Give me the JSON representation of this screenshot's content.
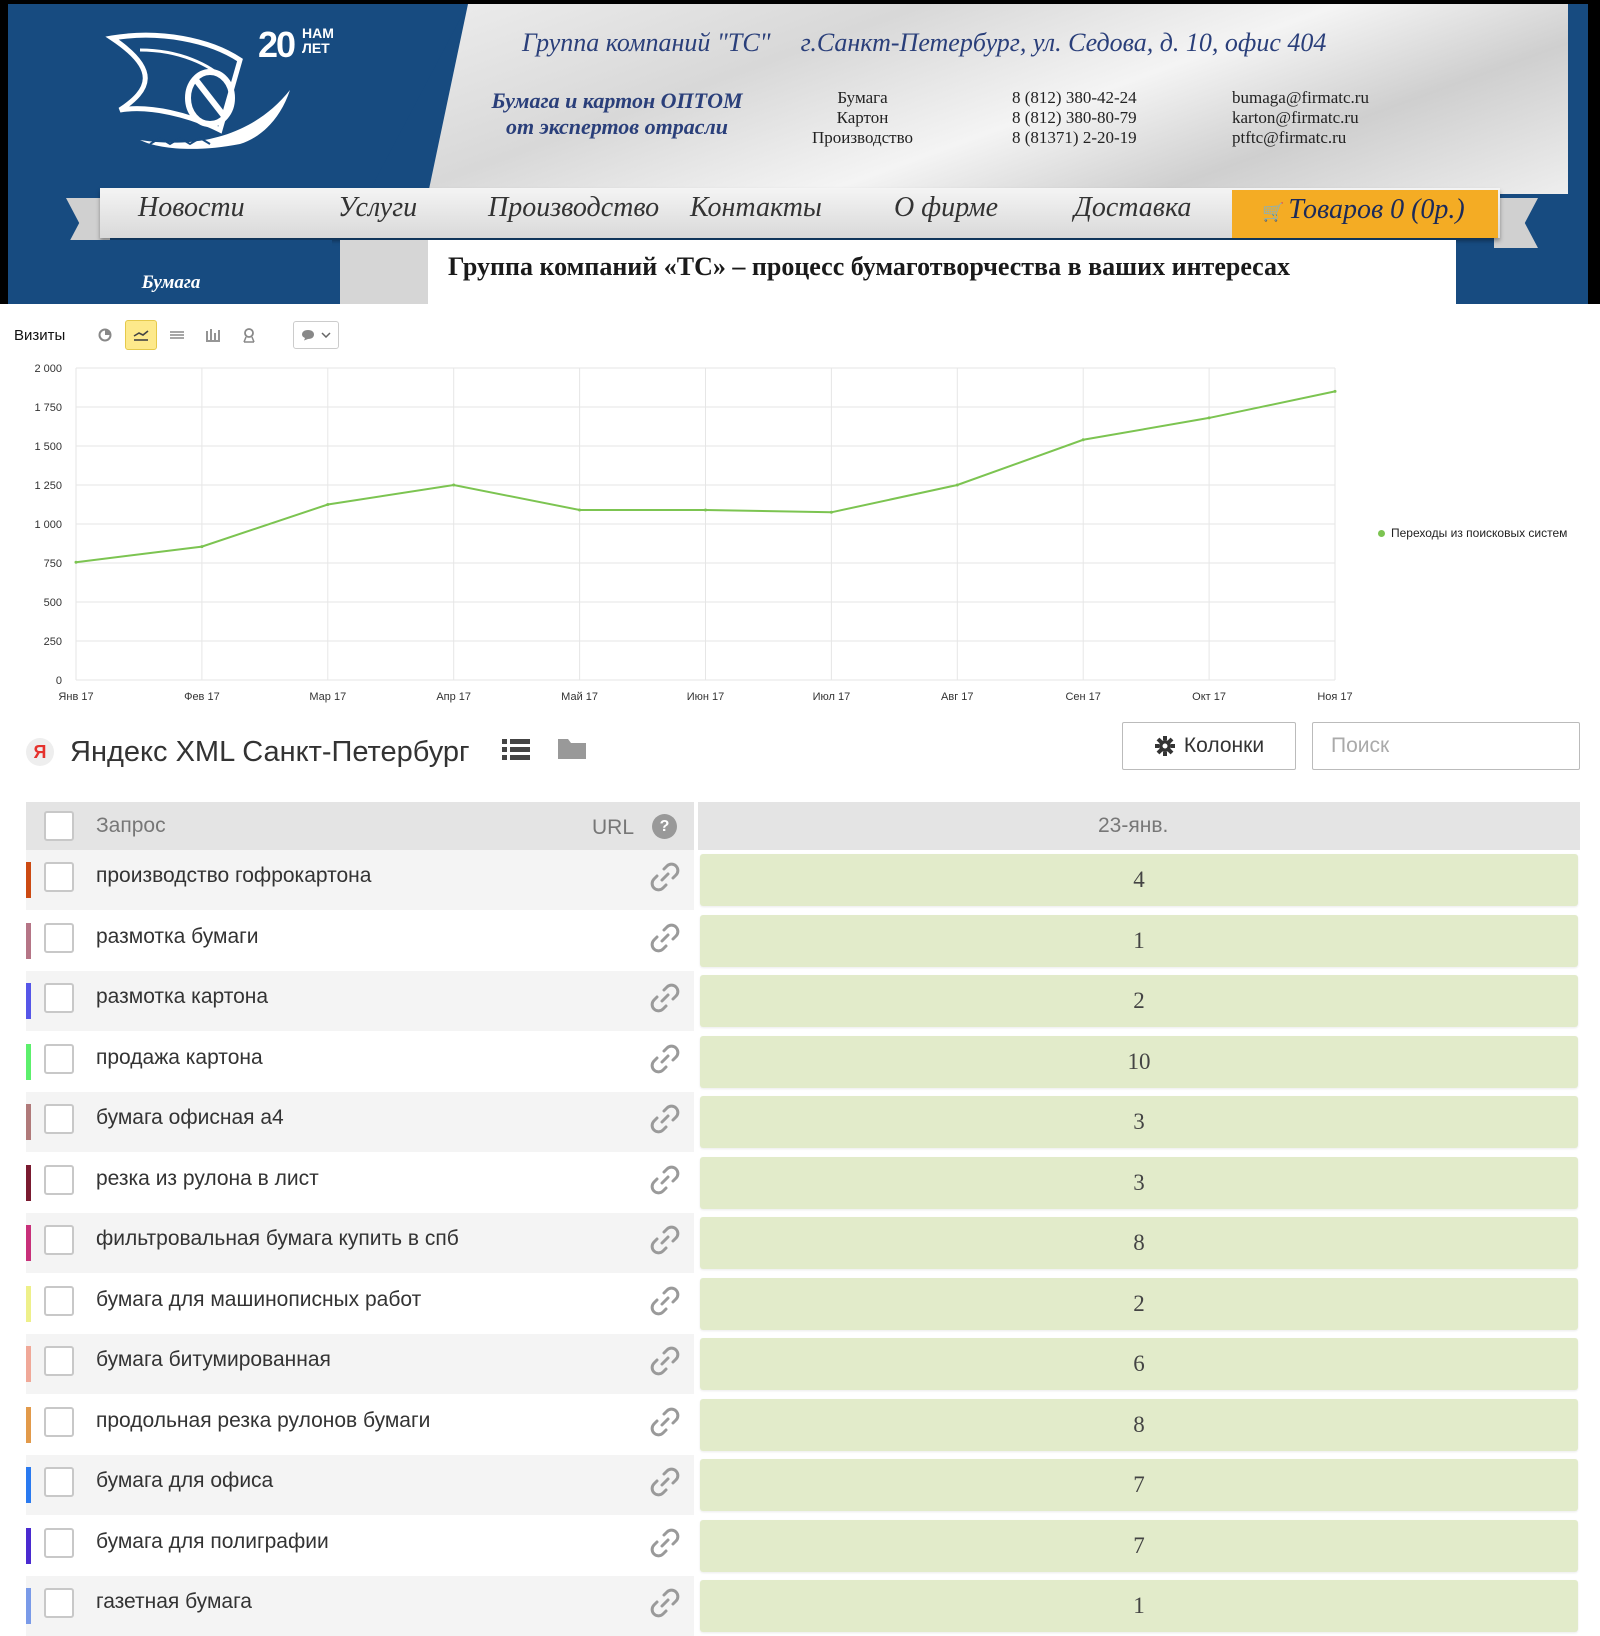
{
  "site_header": {
    "logo_years_number": "20",
    "logo_years_text": "НАМ ЛЕТ",
    "company": "Группа компаний \"ТС\"",
    "address": "г.Санкт-Петербург, ул. Седова, д. 10, офис 404",
    "slogan_line1": "Бумага и картон ОПТОМ",
    "slogan_line2": "от экспертов отрасли",
    "contacts": [
      {
        "label": "Бумага",
        "phone": "8 (812) 380-42-24",
        "email": "bumaga@firmatc.ru"
      },
      {
        "label": "Картон",
        "phone": "8 (812) 380-80-79",
        "email": "karton@firmatc.ru"
      },
      {
        "label": "Производство",
        "phone": "8 (81371) 2-20-19",
        "email": "ptftc@firmatc.ru"
      }
    ],
    "menu": [
      "Новости",
      "Услуги",
      "Производство",
      "Контакты",
      "О фирме",
      "Доставка"
    ],
    "cart_label": "Товаров 0 (0р.)",
    "side_tab": "Бумага",
    "heading": "Группа компаний «ТС»  – процесс бумаготворчества в ваших интересах"
  },
  "chart_toolbar": {
    "metric": "Визиты",
    "chart_type_icons": [
      "pie-chart-icon",
      "line-chart-icon",
      "area-chart-icon",
      "bar-chart-icon",
      "map-icon"
    ],
    "active_type": "line-chart-icon",
    "annotation_dropdown_icon": "comment-icon"
  },
  "chart_data": {
    "type": "line",
    "x": [
      "Янв 17",
      "Фев 17",
      "Мар 17",
      "Апр 17",
      "Май 17",
      "Июн 17",
      "Июл 17",
      "Авг 17",
      "Сен 17",
      "Окт 17",
      "Ноя 17"
    ],
    "series": [
      {
        "name": "Переходы из поисковых систем",
        "color": "#7cc451",
        "values": [
          755,
          855,
          1125,
          1250,
          1090,
          1090,
          1075,
          1250,
          1540,
          1680,
          1850
        ]
      }
    ],
    "ylim": [
      0,
      2000
    ],
    "yticks": [
      0,
      250,
      500,
      750,
      1000,
      1250,
      1500,
      1750,
      2000
    ],
    "ytick_labels": [
      "0",
      "250",
      "500",
      "750",
      "1 000",
      "1 250",
      "1 500",
      "1 750",
      "2 000"
    ],
    "grid": true,
    "legend_position": "right"
  },
  "yandex": {
    "logo_letter": "Я",
    "title": "Яндекс XML Санкт-Петербург",
    "columns_button": "Колонки",
    "search_placeholder": "Поиск",
    "header_query": "Запрос",
    "header_url": "URL",
    "header_help": "?",
    "header_date": "23-янв.",
    "rows": [
      {
        "query": "производство гофрокартона",
        "value": "4",
        "color": "#cc4a12"
      },
      {
        "query": "размотка бумаги",
        "value": "1",
        "color": "#b57586"
      },
      {
        "query": "размотка картона",
        "value": "2",
        "color": "#5656e8"
      },
      {
        "query": "продажа картона",
        "value": "10",
        "color": "#5cf06c"
      },
      {
        "query": "бумага офисная а4",
        "value": "3",
        "color": "#b07a7a"
      },
      {
        "query": "резка из рулона в лист",
        "value": "3",
        "color": "#7a1a30"
      },
      {
        "query": "фильтровальная бумага купить в спб",
        "value": "8",
        "color": "#c8307a"
      },
      {
        "query": "бумага для машинописных работ",
        "value": "2",
        "color": "#eef08a"
      },
      {
        "query": "бумага битумированная",
        "value": "6",
        "color": "#f0a898"
      },
      {
        "query": "продольная резка рулонов бумаги",
        "value": "8",
        "color": "#e29a4a"
      },
      {
        "query": "бумага для офиса",
        "value": "7",
        "color": "#2a7af0"
      },
      {
        "query": "бумага для полиграфии",
        "value": "7",
        "color": "#4a2ad0"
      },
      {
        "query": "газетная бумага",
        "value": "1",
        "color": "#7a9ae8"
      }
    ]
  }
}
